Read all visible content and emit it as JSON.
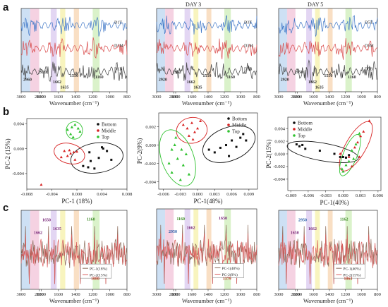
{
  "figure": {
    "panel_letters": [
      "a",
      "b",
      "c"
    ],
    "colors": {
      "top": "#3f77c7",
      "middle": "#d94b4b",
      "bottom": "#444444",
      "green_pts": "#2fc22f",
      "band_blue": "#bcd6f0",
      "band_pink": "#f2c3d8",
      "band_purple": "#d9c8ef",
      "band_yellow": "#f5f0a8",
      "band_orange": "#f7d4b0",
      "band_green": "#cdeeb8"
    }
  },
  "chart_data": [
    {
      "id": "a1",
      "type": "line",
      "title": "",
      "xlabel": "Wavenumber (cm⁻¹)",
      "xticks": [
        "3000",
        "2800",
        "1800",
        "1600",
        "1400",
        "1200",
        "1000",
        "800"
      ],
      "series": [
        {
          "name": "D1T",
          "color": "#3f77c7"
        },
        {
          "name": "D1M",
          "color": "#d94b4b"
        },
        {
          "name": "D1B",
          "color": "#444444"
        }
      ],
      "annotations": [
        "2920",
        "2960",
        "1662",
        "1635",
        "1550",
        "1160"
      ]
    },
    {
      "id": "a2",
      "type": "line",
      "title": "DAY 3",
      "xlabel": "Wavenumber (cm⁻¹)",
      "xticks": [
        "3000",
        "2800",
        "1800",
        "1600",
        "1400",
        "1200",
        "1000",
        "800"
      ],
      "series": [
        {
          "name": "D3T",
          "color": "#3f77c7"
        },
        {
          "name": "D3M",
          "color": "#d94b4b"
        },
        {
          "name": "D3B",
          "color": "#444444"
        }
      ],
      "annotations": [
        "2952",
        "2920",
        "1662",
        "1635",
        "1550",
        "1160"
      ]
    },
    {
      "id": "a3",
      "type": "line",
      "title": "DAY 5",
      "xlabel": "Wavenumber (cm⁻¹)",
      "xticks": [
        "3000",
        "2800",
        "1800",
        "1600",
        "1400",
        "1200",
        "1000",
        "800"
      ],
      "series": [
        {
          "name": "D5T",
          "color": "#3f77c7"
        },
        {
          "name": "D5M",
          "color": "#d94b4b"
        },
        {
          "name": "D5B",
          "color": "#444444"
        }
      ],
      "annotations": [
        "2950",
        "2920",
        "1662",
        "1635",
        "1550",
        "1160"
      ]
    },
    {
      "id": "b1",
      "type": "scatter",
      "xlabel": "PC-1  (18%)",
      "ylabel": "PC-2  (15%)",
      "xlim": [
        -0.008,
        0.008
      ],
      "ylim": [
        -0.0065,
        0.0048
      ],
      "xticks": [
        "-0.008",
        "-0.004",
        "0.000",
        "0.004",
        "0.008"
      ],
      "yticks": [
        "0.004",
        "0.000",
        "-0.004"
      ],
      "legend": [
        "Bottom",
        "Middle",
        "Top"
      ],
      "series": [
        {
          "name": "Bottom",
          "color": "#111111",
          "points": [
            [
              0.002,
              -0.0006
            ],
            [
              0.0035,
              -0.0015
            ],
            [
              0.004,
              0.0002
            ],
            [
              0.0048,
              -0.0004
            ],
            [
              0.0055,
              -0.0018
            ],
            [
              0.001,
              -0.0028
            ],
            [
              0.0018,
              -0.003
            ],
            [
              0.0028,
              -0.0032
            ],
            [
              0.0042,
              0.0
            ],
            [
              0.0022,
              -0.002
            ]
          ]
        },
        {
          "name": "Middle",
          "color": "#d62020",
          "points": [
            [
              -0.002,
              -0.0004
            ],
            [
              -0.0015,
              -0.0012
            ],
            [
              -0.001,
              -0.0008
            ],
            [
              -0.0005,
              -0.0006
            ],
            [
              0.0,
              -0.0005
            ],
            [
              -0.0025,
              -0.0014
            ],
            [
              -0.0012,
              -0.0003
            ],
            [
              -0.0003,
              -0.0018
            ],
            [
              -0.0057,
              -0.0058
            ]
          ]
        },
        {
          "name": "Top",
          "color": "#2fc22f",
          "points": [
            [
              -0.0015,
              0.003
            ],
            [
              -0.0008,
              0.0034
            ],
            [
              -0.0003,
              0.0038
            ],
            [
              0.0002,
              0.0032
            ],
            [
              -0.001,
              0.0023
            ],
            [
              0.0005,
              0.0027
            ],
            [
              -0.0006,
              0.0018
            ]
          ]
        }
      ],
      "ellipses": [
        {
          "color": "#111111",
          "cx": 0.0032,
          "cy": -0.0015,
          "rx": 0.0042,
          "ry": 0.0024,
          "angle": -8
        },
        {
          "color": "#d62020",
          "cx": -0.0012,
          "cy": -0.0008,
          "rx": 0.0025,
          "ry": 0.0016,
          "angle": 15
        },
        {
          "color": "#2fc22f",
          "cx": -0.0004,
          "cy": 0.0029,
          "rx": 0.0013,
          "ry": 0.0014,
          "angle": 0
        }
      ]
    },
    {
      "id": "b2",
      "type": "scatter",
      "xlabel": "PC-1(48%)",
      "ylabel": "PC-2(9%)",
      "xlim": [
        -0.0068,
        0.0105
      ],
      "ylim": [
        -0.0048,
        0.0035
      ],
      "xticks": [
        "-0.006",
        "-0.003",
        "0.000",
        "0.003",
        "0.006",
        "0.009"
      ],
      "yticks": [
        "0.002",
        "0.000",
        "-0.002",
        "-0.004"
      ],
      "legend": [
        "Bottom",
        "Middle",
        "Top"
      ],
      "series": [
        {
          "name": "Bottom",
          "color": "#111111",
          "points": [
            [
              0.002,
              -0.0005
            ],
            [
              0.003,
              -0.0008
            ],
            [
              0.004,
              -0.0003
            ],
            [
              0.005,
              0.0
            ],
            [
              0.006,
              0.0005
            ],
            [
              0.0075,
              0.0008
            ],
            [
              0.008,
              0.0012
            ],
            [
              0.0085,
              0.0005
            ],
            [
              0.0068,
              -0.0002
            ],
            [
              0.0055,
              -0.0012
            ]
          ]
        },
        {
          "name": "Middle",
          "color": "#d62020",
          "points": [
            [
              -0.0025,
              0.0022
            ],
            [
              -0.0018,
              0.0018
            ],
            [
              -0.001,
              0.0024
            ],
            [
              -0.0005,
              0.0014
            ],
            [
              0.0,
              0.0018
            ],
            [
              -0.0015,
              0.001
            ],
            [
              0.0005,
              0.0026
            ],
            [
              -0.0008,
              0.0006
            ]
          ]
        },
        {
          "name": "Top",
          "color": "#2fc22f",
          "points": [
            [
              -0.005,
              -0.002
            ],
            [
              -0.0045,
              -0.003
            ],
            [
              -0.004,
              0.0
            ],
            [
              -0.0035,
              -0.0015
            ],
            [
              -0.003,
              -0.0038
            ],
            [
              -0.0025,
              -0.0022
            ],
            [
              -0.002,
              -0.001
            ],
            [
              -0.0015,
              -0.0032
            ],
            [
              -0.0038,
              0.0008
            ],
            [
              -0.0028,
              -0.0005
            ],
            [
              -0.0045,
              -0.0005
            ]
          ]
        }
      ],
      "ellipses": [
        {
          "color": "#111111",
          "cx": 0.0055,
          "cy": 0.0001,
          "rx": 0.0048,
          "ry": 0.0018,
          "angle": -22
        },
        {
          "color": "#d62020",
          "cx": -0.001,
          "cy": 0.0016,
          "rx": 0.0027,
          "ry": 0.0014,
          "angle": -10
        },
        {
          "color": "#2fc22f",
          "cx": -0.0035,
          "cy": -0.0014,
          "rx": 0.0028,
          "ry": 0.0032,
          "angle": -20
        }
      ]
    },
    {
      "id": "b3",
      "type": "scatter",
      "xlabel": "PC-1(40%)",
      "ylabel": "PC-2(15%)",
      "xlim": [
        -0.0095,
        0.0065
      ],
      "ylim": [
        -0.0058,
        0.0058
      ],
      "xticks": [
        "-0.009",
        "-0.006",
        "-0.003",
        "0.000",
        "0.003",
        "0.006"
      ],
      "yticks": [
        "0.004",
        "0.002",
        "0.000",
        "-0.002",
        "-0.004"
      ],
      "legend": [
        "Bottom",
        "Middle",
        "Top"
      ],
      "series": [
        {
          "name": "Bottom",
          "color": "#111111",
          "points": [
            [
              -0.008,
              0.0015
            ],
            [
              -0.0075,
              0.0012
            ],
            [
              -0.0065,
              0.0008
            ],
            [
              -0.004,
              0.0005
            ],
            [
              -0.0015,
              0.0
            ],
            [
              -0.0005,
              -0.0005
            ],
            [
              0.0,
              -0.0005
            ],
            [
              0.0005,
              -0.0006
            ],
            [
              0.001,
              -0.0002
            ],
            [
              -0.007,
              0.0014
            ]
          ]
        },
        {
          "name": "Middle",
          "color": "#d62020",
          "points": [
            [
              0.0045,
              0.0052
            ],
            [
              0.0035,
              0.0035
            ],
            [
              0.003,
              0.0028
            ],
            [
              0.0025,
              0.0018
            ],
            [
              0.002,
              0.001
            ],
            [
              0.0028,
              -0.0005
            ],
            [
              0.001,
              -0.0005
            ],
            [
              0.0015,
              -0.002
            ],
            [
              -0.0005,
              0.0
            ]
          ]
        },
        {
          "name": "Top",
          "color": "#2fc22f",
          "points": [
            [
              0.0022,
              0.0015
            ],
            [
              0.0015,
              0.0005
            ],
            [
              0.001,
              -0.0012
            ],
            [
              0.0005,
              -0.0018
            ],
            [
              0.0,
              -0.0028
            ],
            [
              -0.0002,
              -0.0024
            ],
            [
              0.0018,
              -0.0008
            ],
            [
              0.0028,
              0.0032
            ]
          ]
        }
      ],
      "ellipses": [
        {
          "color": "#111111",
          "cx": -0.0035,
          "cy": 0.0003,
          "rx": 0.0062,
          "ry": 0.0014,
          "angle": 10
        },
        {
          "color": "#d62020",
          "cx": 0.0022,
          "cy": 0.0012,
          "rx": 0.0048,
          "ry": 0.0016,
          "angle": -60
        },
        {
          "color": "#2fc22f",
          "cx": 0.0012,
          "cy": -0.0002,
          "rx": 0.0038,
          "ry": 0.0011,
          "angle": -68
        }
      ]
    },
    {
      "id": "c1",
      "type": "line",
      "xlabel": "Wavenumber (cm⁻¹)",
      "xticks": [
        "3000",
        "2800",
        "1800",
        "1600",
        "1400",
        "1200",
        "1000",
        "800"
      ],
      "legend": [
        "PC-1(18%)",
        "PC-2(15%)"
      ],
      "series": [
        {
          "name": "PC-1(18%)",
          "color": "#8b6b5a"
        },
        {
          "name": "PC-2(15%)",
          "color": "#d95c5c"
        }
      ],
      "annotations": [
        "1650",
        "1662",
        "1635",
        "1160",
        "1080"
      ]
    },
    {
      "id": "c2",
      "type": "line",
      "xlabel": "Wavenumber (cm⁻¹)",
      "xticks": [
        "3000",
        "2800",
        "1800",
        "1600",
        "1400",
        "1200",
        "1000",
        "800"
      ],
      "legend": [
        "PC-1(48%)",
        "PC-2(9%)"
      ],
      "series": [
        {
          "name": "PC-1(48%)",
          "color": "#8b6b5a"
        },
        {
          "name": "PC-2(9%)",
          "color": "#d95c5c"
        }
      ],
      "annotations": [
        "1160",
        "2950",
        "1662",
        "1650",
        "1379"
      ]
    },
    {
      "id": "c3",
      "type": "line",
      "xlabel": "Wavenumber (cm⁻¹)",
      "xticks": [
        "3000",
        "2800",
        "1800",
        "1600",
        "1400",
        "1200",
        "1000",
        "800"
      ],
      "legend": [
        "PC-1(40%)",
        "PC-2(15%)"
      ],
      "series": [
        {
          "name": "PC-1(40%)",
          "color": "#8b6b5a"
        },
        {
          "name": "PC-2(15%)",
          "color": "#d95c5c"
        }
      ],
      "annotations": [
        "2950",
        "1650",
        "1662",
        "1162",
        "1063"
      ]
    }
  ]
}
